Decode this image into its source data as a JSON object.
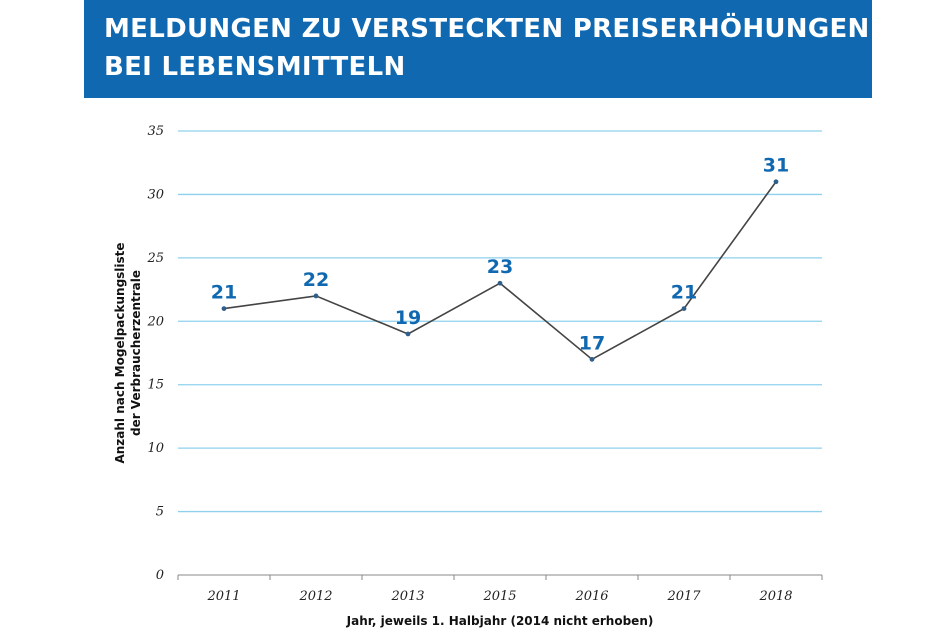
{
  "header": {
    "title_line1": "MELDUNGEN ZU VERSTECKTEN PREISERHÖHUNGEN",
    "title_line2": "BEI LEBENSMITTELN"
  },
  "colors": {
    "header_bg": "#1069b0",
    "gridline": "#8fd0ee",
    "line": "#444444",
    "data_label": "#1069b0"
  },
  "chart_data": {
    "type": "line",
    "title": "MELDUNGEN ZU VERSTECKTEN PREISERHÖHUNGEN BEI LEBENSMITTELN",
    "categories": [
      "2011",
      "2012",
      "2013",
      "2015",
      "2016",
      "2017",
      "2018"
    ],
    "series": [
      {
        "values": [
          21,
          22,
          19,
          23,
          17,
          21,
          31
        ]
      }
    ],
    "ylabel_line1": "Anzahl nach Mogelpackungsliste",
    "ylabel_line2": "der Verbraucherzentrale",
    "xlabel": "Jahr, jeweils 1. Halbjahr (2014 nicht erhoben)",
    "ylim": [
      0,
      35
    ],
    "yticks": [
      0,
      5,
      10,
      15,
      20,
      25,
      30,
      35
    ],
    "grid": true,
    "data_labels": true
  }
}
